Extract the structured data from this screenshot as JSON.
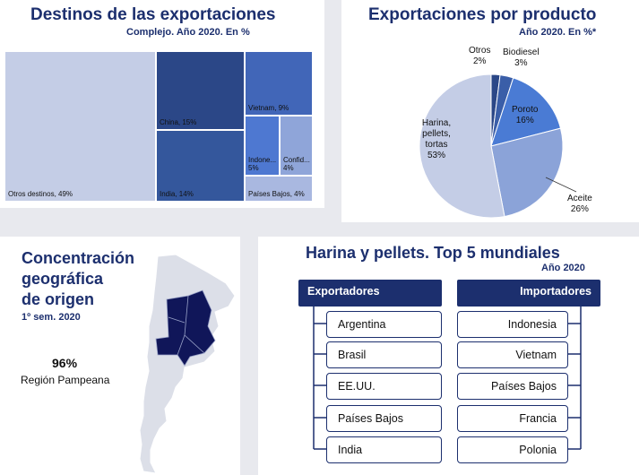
{
  "destinos": {
    "title": "Destinos de las exportaciones",
    "subtitle": "Complejo. Año 2020. En %"
  },
  "producto": {
    "title": "Exportaciones por producto",
    "subtitle": "Año 2020. En %*"
  },
  "concentracion": {
    "title_line1": "Concentración",
    "title_line2": "geográfica",
    "title_line3": "de origen",
    "subtitle": "1º sem. 2020",
    "value": "96%",
    "label": "Región Pampeana"
  },
  "harina": {
    "title": "Harina y pellets. Top 5 mundiales",
    "subtitle": "Año 2020",
    "exportadores_label": "Exportadores",
    "importadores_label": "Importadores",
    "exportadores": [
      "Argentina",
      "Brasil",
      "EE.UU.",
      "Países Bajos",
      "India"
    ],
    "importadores": [
      "Indonesia",
      "Vietnam",
      "Países Bajos",
      "Francia",
      "Polonia"
    ]
  },
  "chart_data": [
    {
      "type": "treemap",
      "title": "Destinos de las exportaciones",
      "subtitle": "Complejo. Año 2020. En %",
      "items": [
        {
          "label": "Otros destinos, 49%",
          "value": 49,
          "color": "#c4cde6"
        },
        {
          "label": "China, 15%",
          "value": 15,
          "color": "#2b4787"
        },
        {
          "label": "India, 14%",
          "value": 14,
          "color": "#34579c"
        },
        {
          "label": "Vietnam, 9%",
          "value": 9,
          "color": "#4166b8"
        },
        {
          "label": "Indone... 5%",
          "value": 5,
          "color": "#4e78d1"
        },
        {
          "label": "Confid... 4%",
          "value": 4,
          "color": "#8fa5d9"
        },
        {
          "label": "Países Bajos, 4%",
          "value": 4,
          "color": "#a9b8e0"
        }
      ]
    },
    {
      "type": "pie",
      "title": "Exportaciones por producto",
      "subtitle": "Año 2020. En %*",
      "slices": [
        {
          "name": "Otros",
          "value": 2,
          "label": "2%",
          "color": "#2b4787"
        },
        {
          "name": "Biodiesel",
          "value": 3,
          "label": "3%",
          "color": "#3a5ea8"
        },
        {
          "name": "Poroto",
          "value": 16,
          "label": "16%",
          "color": "#4a7bd4"
        },
        {
          "name": "Aceite",
          "value": 26,
          "label": "26%",
          "color": "#8ba3d8"
        },
        {
          "name": "Harina, pellets, tortas",
          "value": 53,
          "label": "53%",
          "color": "#c4cde6"
        }
      ]
    }
  ]
}
